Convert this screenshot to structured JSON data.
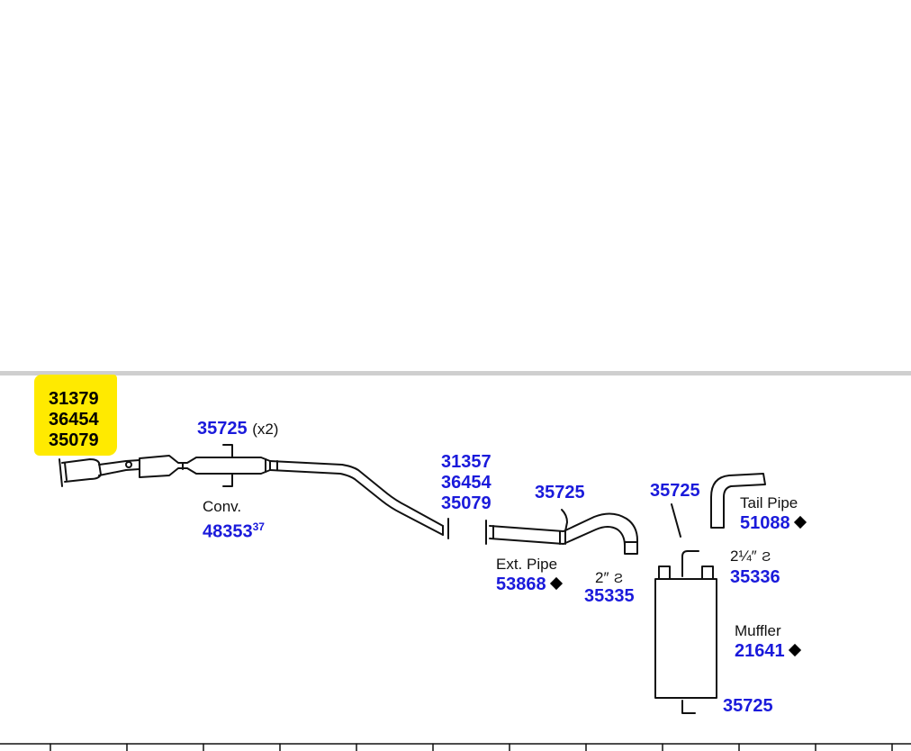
{
  "colors": {
    "part_number": "#1a1adb",
    "highlight": "#ffea00",
    "divider": "#cfcfcf"
  },
  "header_group": {
    "parts": [
      "31379",
      "36454",
      "35079"
    ]
  },
  "hanger_top": {
    "part": "35725",
    "qty": "(x2)"
  },
  "converter": {
    "name": "Conv.",
    "part": "48353",
    "note": "37"
  },
  "front_joint": {
    "parts": [
      "31357",
      "36454",
      "35079"
    ]
  },
  "ext_hanger": {
    "part": "35725"
  },
  "ext_pipe": {
    "name": "Ext. Pipe",
    "part": "53868"
  },
  "clamp_2in": {
    "size": "2″",
    "part": "35335"
  },
  "muffler_hanger_top": {
    "part": "35725"
  },
  "tail_pipe": {
    "name": "Tail Pipe",
    "part": "51088"
  },
  "clamp_225": {
    "size": "2¼″",
    "part": "35336"
  },
  "muffler": {
    "name": "Muffler",
    "part": "21641"
  },
  "muffler_hanger_bottom": {
    "part": "35725"
  },
  "icons": [
    "diamond-icon",
    "clamp-icon"
  ]
}
